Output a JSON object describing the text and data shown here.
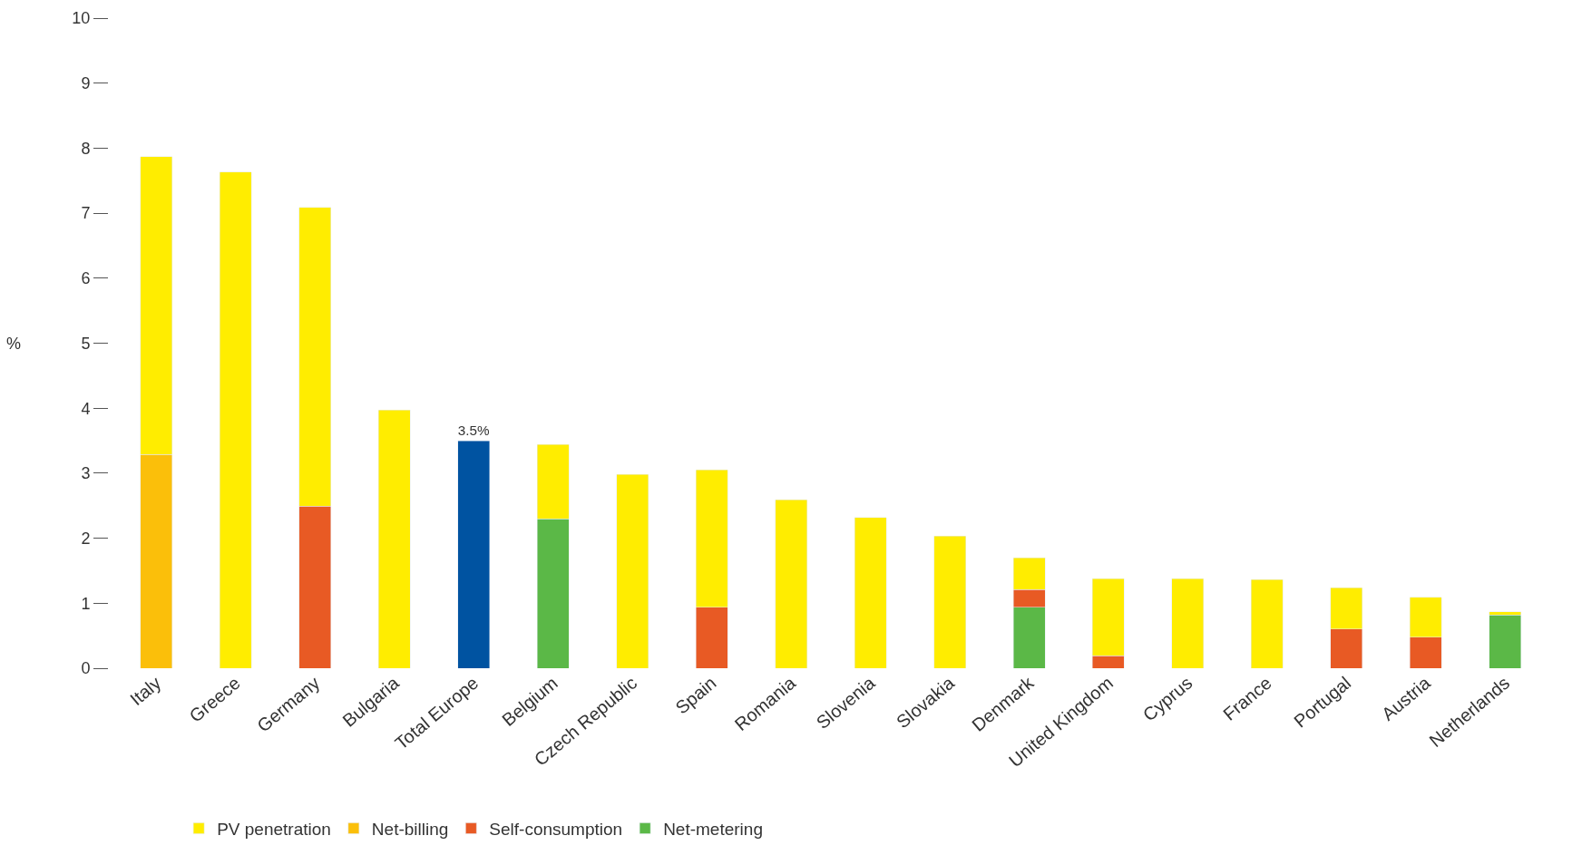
{
  "chart_data": {
    "type": "bar",
    "stacked": true,
    "ylabel": "%",
    "ylim": [
      0,
      10
    ],
    "yticks": [
      0,
      1,
      2,
      3,
      4,
      5,
      6,
      7,
      8,
      9,
      10
    ],
    "legend": "bottom",
    "categories": [
      "Italy",
      "Greece",
      "Germany",
      "Bulgaria",
      "Total Europe",
      "Belgium",
      "Czech Republic",
      "Spain",
      "Romania",
      "Slovenia",
      "Slovakia",
      "Denmark",
      "United Kingdom",
      "Cyprus",
      "France",
      "Portugal",
      "Austria",
      "Netherlands"
    ],
    "series": [
      {
        "name": "Net-metering",
        "color": "#5bb847",
        "values": [
          null,
          null,
          null,
          null,
          null,
          2.3,
          null,
          null,
          null,
          null,
          null,
          0.94,
          null,
          null,
          null,
          null,
          null,
          0.82
        ]
      },
      {
        "name": "Self-consumption",
        "color": "#e85a24",
        "values": [
          null,
          null,
          2.49,
          null,
          null,
          null,
          null,
          0.94,
          null,
          null,
          null,
          0.27,
          0.19,
          null,
          null,
          0.6,
          0.48,
          null
        ]
      },
      {
        "name": "Net-billing",
        "color": "#fbbf0a",
        "values": [
          3.29,
          null,
          null,
          null,
          null,
          null,
          null,
          null,
          null,
          null,
          null,
          null,
          null,
          null,
          null,
          null,
          null,
          null
        ]
      },
      {
        "name": "PV penetration",
        "color": "#ffed00",
        "values": [
          4.58,
          7.63,
          4.6,
          3.97,
          null,
          1.14,
          2.98,
          2.11,
          2.59,
          2.32,
          2.03,
          0.49,
          1.19,
          1.38,
          1.36,
          0.64,
          0.61,
          0.05
        ]
      },
      {
        "color": "#0053a1",
        "values": [
          null,
          null,
          null,
          null,
          3.5,
          null,
          null,
          null,
          null,
          null,
          null,
          null,
          null,
          null,
          null,
          null,
          null,
          null
        ],
        "value_labels": [
          null,
          null,
          null,
          null,
          "3.5%",
          null,
          null,
          null,
          null,
          null,
          null,
          null,
          null,
          null,
          null,
          null,
          null,
          null
        ]
      }
    ]
  }
}
